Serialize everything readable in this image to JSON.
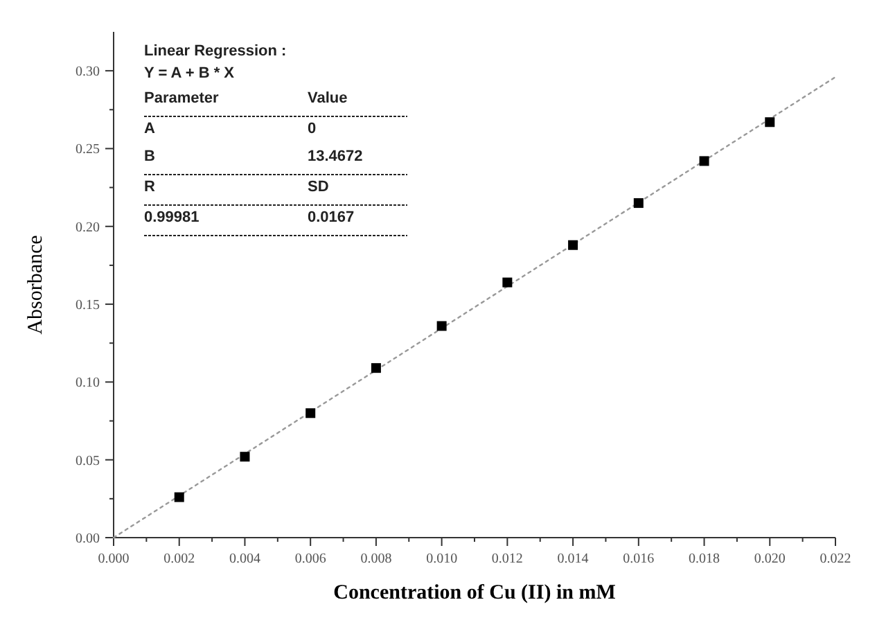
{
  "chart_data": {
    "type": "scatter",
    "xlabel": "Concentration of Cu (II) in mM",
    "ylabel": "Absorbance",
    "xlim": [
      0,
      0.022
    ],
    "ylim": [
      0,
      0.325
    ],
    "xticks": [
      {
        "value": 0,
        "label": "0.000"
      },
      {
        "value": 0.001,
        "label": null
      },
      {
        "value": 0.002,
        "label": "0.002"
      },
      {
        "value": 0.003,
        "label": null
      },
      {
        "value": 0.004,
        "label": "0.004"
      },
      {
        "value": 0.005,
        "label": null
      },
      {
        "value": 0.006,
        "label": "0.006"
      },
      {
        "value": 0.007,
        "label": null
      },
      {
        "value": 0.008,
        "label": "0.008"
      },
      {
        "value": 0.009,
        "label": null
      },
      {
        "value": 0.01,
        "label": "0.010"
      },
      {
        "value": 0.011,
        "label": null
      },
      {
        "value": 0.012,
        "label": "0.012"
      },
      {
        "value": 0.013,
        "label": null
      },
      {
        "value": 0.014,
        "label": "0.014"
      },
      {
        "value": 0.015,
        "label": null
      },
      {
        "value": 0.016,
        "label": "0.016"
      },
      {
        "value": 0.017,
        "label": null
      },
      {
        "value": 0.018,
        "label": "0.018"
      },
      {
        "value": 0.019,
        "label": null
      },
      {
        "value": 0.02,
        "label": "0.020"
      },
      {
        "value": 0.021,
        "label": null
      },
      {
        "value": 0.022,
        "label": "0.022"
      }
    ],
    "yticks": [
      {
        "value": 0,
        "label": "0.00"
      },
      {
        "value": 0.025,
        "label": null
      },
      {
        "value": 0.05,
        "label": "0.05"
      },
      {
        "value": 0.075,
        "label": null
      },
      {
        "value": 0.1,
        "label": "0.10"
      },
      {
        "value": 0.125,
        "label": null
      },
      {
        "value": 0.15,
        "label": "0.15"
      },
      {
        "value": 0.175,
        "label": null
      },
      {
        "value": 0.2,
        "label": "0.20"
      },
      {
        "value": 0.225,
        "label": null
      },
      {
        "value": 0.25,
        "label": "0.25"
      },
      {
        "value": 0.275,
        "label": null
      },
      {
        "value": 0.3,
        "label": "0.30"
      }
    ],
    "grid": false,
    "series": [
      {
        "color": "#000000",
        "marker": "square",
        "x": [
          0.002,
          0.004,
          0.006,
          0.008,
          0.01,
          0.012,
          0.014,
          0.016,
          0.018,
          0.02
        ],
        "values": [
          0.026,
          0.052,
          0.08,
          0.109,
          0.136,
          0.164,
          0.188,
          0.215,
          0.242,
          0.267
        ]
      },
      {
        "type": "line",
        "color": "#999999",
        "line_style": "dotted",
        "marker": "none",
        "x": [
          0,
          0.022
        ],
        "values": [
          0,
          0.296
        ]
      }
    ],
    "annotations": [
      "Linear Regression :",
      "Y = A + B * X",
      "Parameter",
      "Value",
      "A",
      "0",
      "B",
      "13.4672",
      "R",
      "SD",
      "0.99981",
      "0.0167"
    ]
  }
}
